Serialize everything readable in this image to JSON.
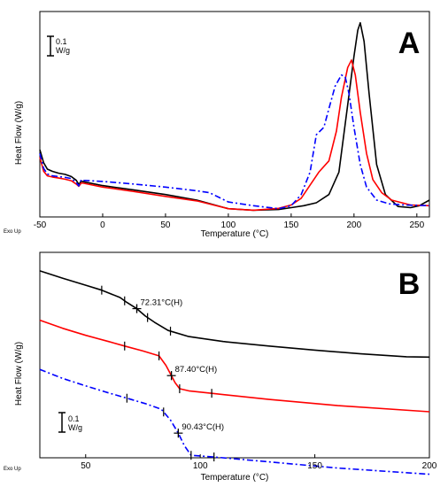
{
  "chart_data": [
    {
      "panel_label": "A",
      "type": "line",
      "xlabel": "Temperature (°C)",
      "ylabel": "Heat Flow (W/g)",
      "exo_label": "Exo Up",
      "scale_bar": {
        "value": "0.1",
        "unit": "W/g"
      },
      "xlim": [
        -50,
        260
      ],
      "x_ticks": [
        -50,
        0,
        50,
        100,
        150,
        200,
        250
      ],
      "y_range_wg": [
        0,
        0.55
      ],
      "grid": false,
      "legend": "none",
      "series": [
        {
          "color": "#000000",
          "dash": "solid",
          "x": [
            -50,
            -47,
            -44,
            -40,
            -35,
            -30,
            -25,
            -21,
            -19,
            -17,
            -15,
            0,
            25,
            50,
            75,
            100,
            120,
            140,
            150,
            160,
            170,
            180,
            188,
            195,
            200,
            203,
            205,
            208,
            212,
            218,
            225,
            235,
            245,
            252,
            260
          ],
          "y": [
            0.18,
            0.145,
            0.128,
            0.122,
            0.117,
            0.114,
            0.108,
            0.098,
            0.087,
            0.096,
            0.094,
            0.084,
            0.072,
            0.06,
            0.045,
            0.022,
            0.018,
            0.02,
            0.025,
            0.03,
            0.038,
            0.06,
            0.12,
            0.3,
            0.43,
            0.5,
            0.52,
            0.47,
            0.33,
            0.14,
            0.06,
            0.028,
            0.025,
            0.03,
            0.045
          ]
        },
        {
          "color": "#ff0000",
          "dash": "solid",
          "x": [
            -50,
            -47,
            -44,
            -40,
            -35,
            -30,
            -25,
            -21,
            -19,
            -17,
            -15,
            0,
            25,
            50,
            75,
            100,
            120,
            140,
            150,
            158,
            165,
            172,
            180,
            186,
            190,
            195,
            198,
            201,
            205,
            210,
            215,
            222,
            230,
            245,
            260
          ],
          "y": [
            0.16,
            0.122,
            0.11,
            0.107,
            0.104,
            0.101,
            0.097,
            0.088,
            0.082,
            0.091,
            0.09,
            0.08,
            0.068,
            0.055,
            0.043,
            0.022,
            0.018,
            0.023,
            0.032,
            0.05,
            0.085,
            0.12,
            0.15,
            0.23,
            0.32,
            0.4,
            0.42,
            0.38,
            0.28,
            0.17,
            0.1,
            0.065,
            0.045,
            0.032,
            0.03
          ]
        },
        {
          "color": "#0000ff",
          "dash": "dash-dot",
          "x": [
            -50,
            -47,
            -44,
            -40,
            -35,
            -30,
            -25,
            -21,
            -19,
            -17,
            -15,
            0,
            25,
            50,
            75,
            85,
            100,
            120,
            140,
            150,
            158,
            165,
            170,
            173,
            176,
            180,
            185,
            190,
            193,
            196,
            200,
            205,
            210,
            218,
            228,
            240,
            260
          ],
          "y": [
            0.17,
            0.13,
            0.115,
            0.11,
            0.108,
            0.106,
            0.103,
            0.092,
            0.083,
            0.1,
            0.098,
            0.095,
            0.088,
            0.08,
            0.07,
            0.065,
            0.04,
            0.03,
            0.022,
            0.03,
            0.06,
            0.12,
            0.22,
            0.23,
            0.24,
            0.29,
            0.35,
            0.38,
            0.375,
            0.33,
            0.24,
            0.14,
            0.08,
            0.045,
            0.035,
            0.032,
            0.03
          ]
        }
      ]
    },
    {
      "panel_label": "B",
      "type": "line",
      "xlabel": "Temperature (°C)",
      "ylabel": "Heat Flow (W/g)",
      "exo_label": "Exo Up",
      "scale_bar": {
        "value": "0.1",
        "unit": "W/g"
      },
      "xlim": [
        30,
        200
      ],
      "x_ticks": [
        50,
        100,
        150,
        200
      ],
      "y_range_wg": [
        0,
        0.5
      ],
      "grid": false,
      "legend": "none",
      "annotations": [
        "72.31°C(H)",
        "87.40°C(H)",
        "90.43°C(H)"
      ],
      "series": [
        {
          "color": "#000000",
          "dash": "solid",
          "annotation": "72.31°C(H)",
          "midpoint": [
            72.31,
            0.363
          ],
          "x": [
            30,
            40,
            50,
            57,
            65,
            68,
            72.31,
            76,
            80,
            86,
            95,
            110,
            130,
            150,
            170,
            190,
            200
          ],
          "y": [
            0.455,
            0.437,
            0.42,
            0.408,
            0.39,
            0.378,
            0.363,
            0.345,
            0.33,
            0.31,
            0.295,
            0.283,
            0.272,
            0.262,
            0.253,
            0.246,
            0.245
          ],
          "markers_x": [
            57,
            67,
            72.31,
            77,
            87
          ]
        },
        {
          "color": "#ff0000",
          "dash": "solid",
          "annotation": "87.40°C(H)",
          "midpoint": [
            87.4,
            0.2
          ],
          "x": [
            30,
            40,
            50,
            60,
            67,
            75,
            82,
            85,
            87.4,
            89,
            91,
            95,
            105,
            130,
            160,
            200
          ],
          "y": [
            0.335,
            0.315,
            0.298,
            0.283,
            0.272,
            0.26,
            0.248,
            0.225,
            0.2,
            0.183,
            0.168,
            0.163,
            0.157,
            0.142,
            0.127,
            0.112
          ],
          "markers_x": [
            67,
            82,
            87.4,
            91,
            105
          ]
        },
        {
          "color": "#0000ff",
          "dash": "dash-dot",
          "annotation": "90.43°C(H)",
          "midpoint": [
            90.43,
            0.06
          ],
          "x": [
            30,
            40,
            50,
            60,
            68,
            76,
            83,
            87,
            90.43,
            93,
            96,
            106,
            130,
            160,
            200
          ],
          "y": [
            0.215,
            0.193,
            0.175,
            0.158,
            0.145,
            0.132,
            0.118,
            0.092,
            0.06,
            0.03,
            0.006,
            0.002,
            -0.01,
            -0.025,
            -0.04
          ],
          "markers_x": [
            68,
            84,
            90.43,
            96,
            106
          ]
        }
      ]
    }
  ]
}
